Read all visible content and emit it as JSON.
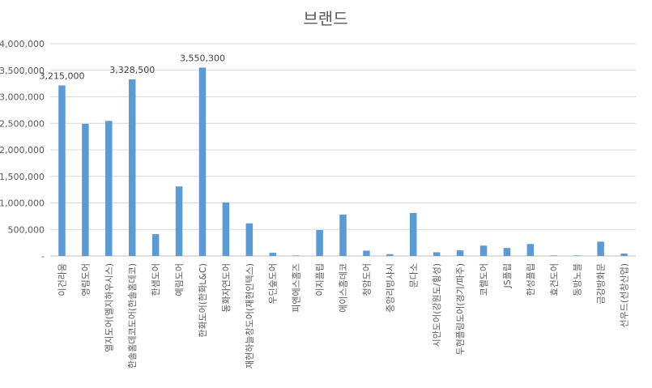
{
  "chart_data": {
    "type": "bar",
    "title": "브랜드",
    "xlabel": "",
    "ylabel": "",
    "ylim": [
      0,
      4000000
    ],
    "yticks": [
      0,
      500000,
      1000000,
      1500000,
      2000000,
      2500000,
      3000000,
      3500000,
      4000000
    ],
    "ytick_labels": [
      "-",
      "500,000",
      "1,000,000",
      "1,500,000",
      "2,000,000",
      "2,500,000",
      "3,000,000",
      "3,500,000",
      "4,000,000"
    ],
    "grid": true,
    "legend": "none",
    "bar_color": "#5b9bd5",
    "categories": [
      "이건라움",
      "영림도어",
      "엘지도어(엘지하우시스)",
      "한솔홈데코도어(한솔홈데코)",
      "한샘도어",
      "예림도어",
      "한화도어(한화L&C)",
      "동화자연도어",
      "재현하늘창도어(재현인텍스)",
      "우딘숲도어",
      "피엔에스홈즈",
      "이지플립",
      "에이스홈데코",
      "청암도어",
      "중앙리빙샤시",
      "문다소",
      "시안도어(강원도/횡성)",
      "두현플링도어(경기/파주)",
      "코렐도어",
      "JS플립",
      "한성플립",
      "효건도어",
      "동방노블",
      "금강방화문",
      "선우드(선창산업)"
    ],
    "values": [
      3215000,
      2490000,
      2545000,
      3328500,
      410000,
      1310000,
      3550300,
      1010000,
      615000,
      60000,
      10000,
      490000,
      780000,
      100000,
      35000,
      810000,
      70000,
      105000,
      195000,
      150000,
      225000,
      10000,
      10000,
      270000,
      45000
    ],
    "data_labels": [
      "3,215,000",
      "",
      "",
      "3,328,500",
      "",
      "",
      "3,550,300",
      "",
      "",
      "",
      "",
      "",
      "",
      "",
      "",
      "",
      "",
      "",
      "",
      "",
      "",
      "",
      "",
      "",
      ""
    ]
  }
}
